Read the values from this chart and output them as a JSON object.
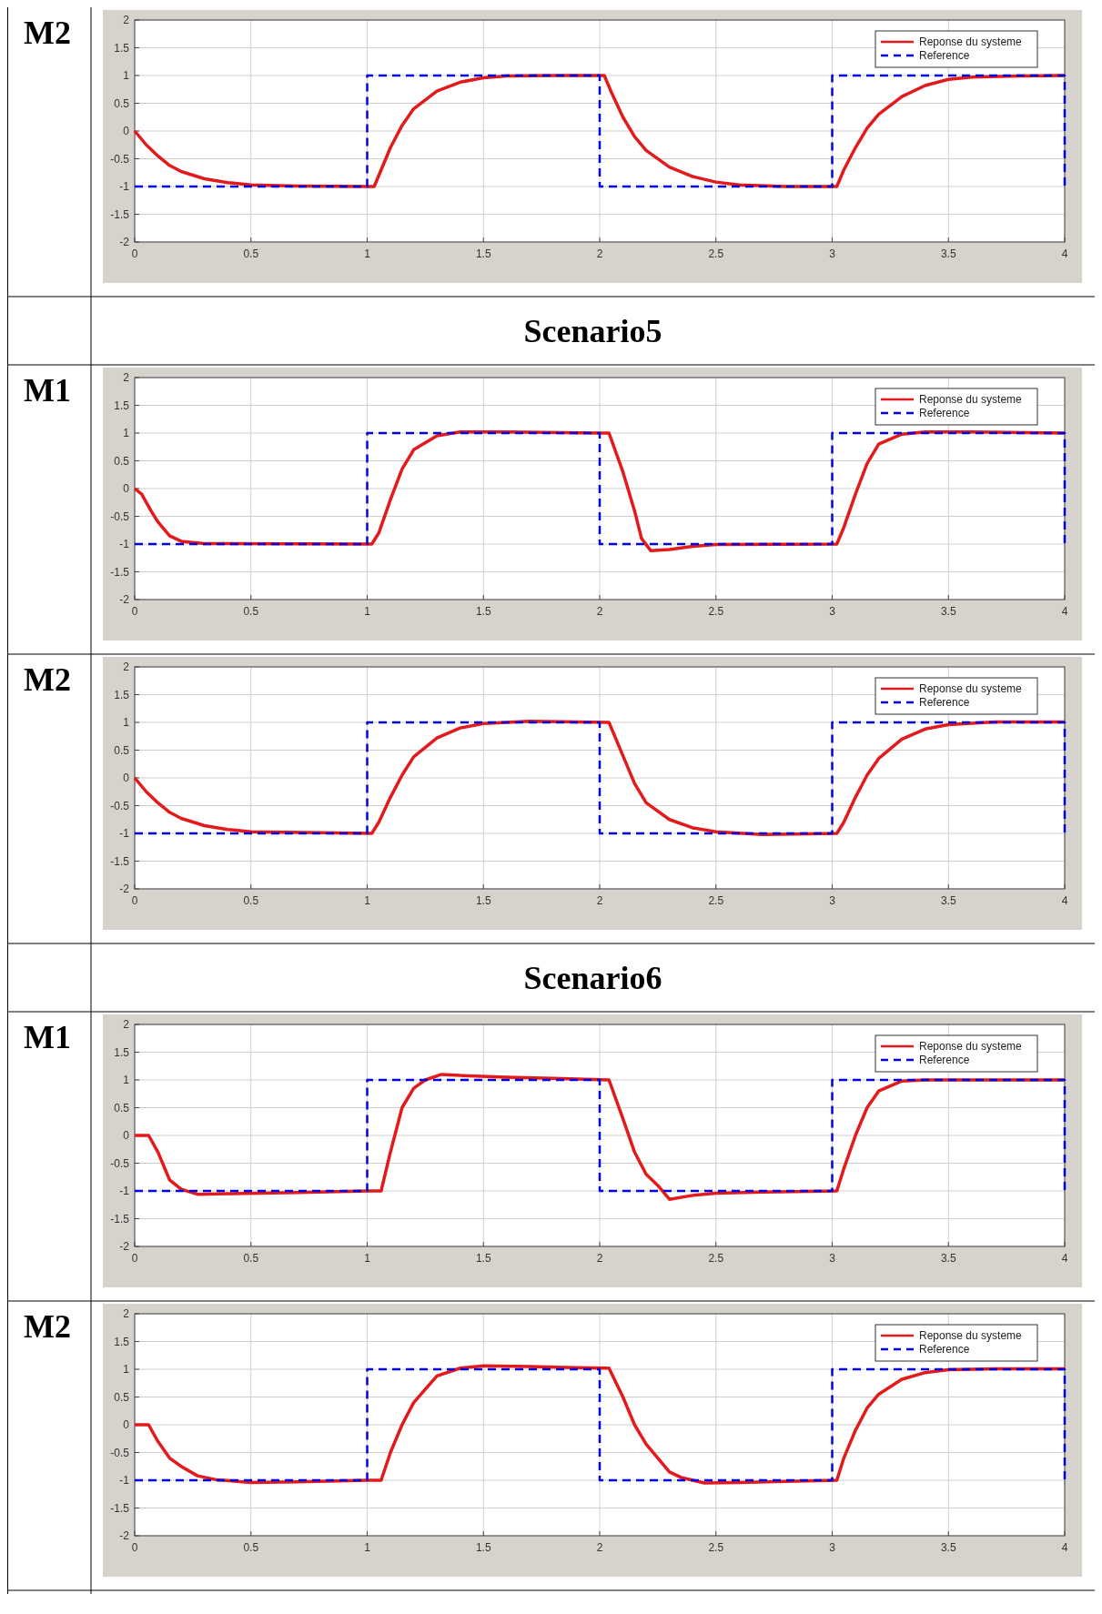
{
  "chart_data": [
    {
      "type": "line",
      "title": "M2",
      "xlim": [
        0,
        4
      ],
      "ylim": [
        -2,
        2
      ],
      "xticks": [
        0,
        0.5,
        1,
        1.5,
        2,
        2.5,
        3,
        3.5,
        4
      ],
      "yticks": [
        -2,
        -1.5,
        -1,
        -0.5,
        0,
        0.5,
        1,
        1.5,
        2
      ],
      "grid": true,
      "legend": "top right",
      "series": [
        {
          "name": "Reponse du systeme",
          "color": "#e31a1c",
          "line_style": "solid",
          "x": [
            0,
            0.05,
            0.1,
            0.15,
            0.2,
            0.3,
            0.4,
            0.5,
            0.7,
            1.0,
            1.03,
            1.06,
            1.1,
            1.15,
            1.2,
            1.3,
            1.4,
            1.5,
            1.6,
            1.8,
            2.0,
            2.02,
            2.05,
            2.1,
            2.15,
            2.2,
            2.3,
            2.4,
            2.5,
            2.6,
            2.8,
            3.02,
            3.05,
            3.1,
            3.15,
            3.2,
            3.3,
            3.4,
            3.5,
            3.6,
            3.8,
            4.0
          ],
          "values": [
            0,
            -0.25,
            -0.45,
            -0.62,
            -0.73,
            -0.86,
            -0.93,
            -0.97,
            -0.99,
            -1,
            -1,
            -0.7,
            -0.3,
            0.1,
            0.4,
            0.72,
            0.88,
            0.96,
            0.99,
            1,
            1,
            1,
            0.7,
            0.25,
            -0.1,
            -0.35,
            -0.65,
            -0.82,
            -0.92,
            -0.97,
            -1,
            -1,
            -0.7,
            -0.3,
            0.05,
            0.3,
            0.62,
            0.82,
            0.93,
            0.97,
            0.99,
            1
          ]
        },
        {
          "name": "Reference",
          "color": "#0000e0",
          "line_style": "dashed",
          "x": [
            0,
            1,
            1,
            2,
            2,
            3,
            3,
            4,
            4
          ],
          "values": [
            -1,
            -1,
            1,
            1,
            -1,
            -1,
            1,
            1,
            -1
          ]
        }
      ]
    },
    {
      "type": "line",
      "title": "M1",
      "subtitle": "Scenario5",
      "xlim": [
        0,
        4
      ],
      "ylim": [
        -2,
        2
      ],
      "xticks": [
        0,
        0.5,
        1,
        1.5,
        2,
        2.5,
        3,
        3.5,
        4
      ],
      "yticks": [
        -2,
        -1.5,
        -1,
        -0.5,
        0,
        0.5,
        1,
        1.5,
        2
      ],
      "grid": true,
      "legend": "top right",
      "series": [
        {
          "name": "Reponse du systeme",
          "color": "#e31a1c",
          "line_style": "solid",
          "x": [
            0,
            0.03,
            0.07,
            0.1,
            0.15,
            0.2,
            0.3,
            1.02,
            1.05,
            1.1,
            1.15,
            1.2,
            1.3,
            1.4,
            1.6,
            2.0,
            2.04,
            2.1,
            2.15,
            2.18,
            2.22,
            2.3,
            2.4,
            2.5,
            3.02,
            3.05,
            3.1,
            3.15,
            3.2,
            3.3,
            3.4,
            3.6,
            4.0
          ],
          "values": [
            0,
            -0.1,
            -0.4,
            -0.6,
            -0.85,
            -0.95,
            -0.99,
            -1,
            -0.8,
            -0.2,
            0.35,
            0.7,
            0.95,
            1.02,
            1.02,
            1,
            1,
            0.3,
            -0.4,
            -0.9,
            -1.12,
            -1.1,
            -1.04,
            -1.01,
            -1,
            -0.7,
            -0.1,
            0.45,
            0.8,
            0.98,
            1.02,
            1.02,
            1
          ]
        },
        {
          "name": "Reference",
          "color": "#0000e0",
          "line_style": "dashed",
          "x": [
            0,
            1,
            1,
            2,
            2,
            3,
            3,
            4,
            4
          ],
          "values": [
            -1,
            -1,
            1,
            1,
            -1,
            -1,
            1,
            1,
            -1
          ]
        }
      ]
    },
    {
      "type": "line",
      "title": "M2",
      "xlim": [
        0,
        4
      ],
      "ylim": [
        -2,
        2
      ],
      "xticks": [
        0,
        0.5,
        1,
        1.5,
        2,
        2.5,
        3,
        3.5,
        4
      ],
      "yticks": [
        -2,
        -1.5,
        -1,
        -0.5,
        0,
        0.5,
        1,
        1.5,
        2
      ],
      "grid": true,
      "legend": "top right",
      "series": [
        {
          "name": "Reponse du systeme",
          "color": "#e31a1c",
          "line_style": "solid",
          "x": [
            0,
            0.05,
            0.1,
            0.15,
            0.2,
            0.3,
            0.4,
            0.5,
            1.02,
            1.05,
            1.1,
            1.15,
            1.2,
            1.3,
            1.4,
            1.5,
            1.7,
            2.04,
            2.1,
            2.15,
            2.2,
            2.3,
            2.4,
            2.5,
            2.7,
            2.9,
            3.02,
            3.05,
            3.1,
            3.15,
            3.2,
            3.3,
            3.4,
            3.5,
            3.7,
            4.0
          ],
          "values": [
            0,
            -0.25,
            -0.45,
            -0.62,
            -0.73,
            -0.86,
            -0.93,
            -0.97,
            -1,
            -0.8,
            -0.35,
            0.05,
            0.38,
            0.72,
            0.9,
            0.98,
            1.02,
            1,
            0.4,
            -0.1,
            -0.45,
            -0.75,
            -0.9,
            -0.97,
            -1.02,
            -1.01,
            -1,
            -0.8,
            -0.35,
            0.05,
            0.35,
            0.7,
            0.88,
            0.96,
            1.01,
            1.01
          ]
        },
        {
          "name": "Reference",
          "color": "#0000e0",
          "line_style": "dashed",
          "x": [
            0,
            1,
            1,
            2,
            2,
            3,
            3,
            4,
            4
          ],
          "values": [
            -1,
            -1,
            1,
            1,
            -1,
            -1,
            1,
            1,
            -1
          ]
        }
      ]
    },
    {
      "type": "line",
      "title": "M1",
      "subtitle": "Scenario6",
      "xlim": [
        0,
        4
      ],
      "ylim": [
        -2,
        2
      ],
      "xticks": [
        0,
        0.5,
        1,
        1.5,
        2,
        2.5,
        3,
        3.5,
        4
      ],
      "yticks": [
        -2,
        -1.5,
        -1,
        -0.5,
        0,
        0.5,
        1,
        1.5,
        2
      ],
      "grid": true,
      "legend": "top right",
      "series": [
        {
          "name": "Reponse du systeme",
          "color": "#e31a1c",
          "line_style": "solid",
          "x": [
            0,
            0.06,
            0.1,
            0.15,
            0.2,
            0.27,
            0.4,
            0.7,
            1.0,
            1.06,
            1.1,
            1.15,
            1.2,
            1.25,
            1.32,
            1.4,
            1.6,
            1.8,
            2.04,
            2.1,
            2.15,
            2.2,
            2.25,
            2.3,
            2.4,
            2.5,
            2.7,
            3.02,
            3.05,
            3.1,
            3.15,
            3.2,
            3.3,
            3.4,
            4.0
          ],
          "values": [
            0,
            0,
            -0.3,
            -0.8,
            -0.97,
            -1.06,
            -1.05,
            -1.03,
            -1,
            -1,
            -0.3,
            0.5,
            0.85,
            1,
            1.1,
            1.08,
            1.05,
            1.03,
            1,
            0.3,
            -0.3,
            -0.7,
            -0.9,
            -1.15,
            -1.08,
            -1.04,
            -1.02,
            -1,
            -0.6,
            0,
            0.5,
            0.8,
            0.98,
            1,
            1
          ]
        },
        {
          "name": "Reference",
          "color": "#0000e0",
          "line_style": "dashed",
          "x": [
            0,
            1,
            1,
            2,
            2,
            3,
            3,
            4,
            4
          ],
          "values": [
            -1,
            -1,
            1,
            1,
            -1,
            -1,
            1,
            1,
            -1
          ]
        }
      ]
    },
    {
      "type": "line",
      "title": "M2",
      "xlim": [
        0,
        4
      ],
      "ylim": [
        -2,
        2
      ],
      "xticks": [
        0,
        0.5,
        1,
        1.5,
        2,
        2.5,
        3,
        3.5,
        4
      ],
      "yticks": [
        -2,
        -1.5,
        -1,
        -0.5,
        0,
        0.5,
        1,
        1.5,
        2
      ],
      "grid": true,
      "legend": "top right",
      "series": [
        {
          "name": "Reponse du systeme",
          "color": "#e31a1c",
          "line_style": "solid",
          "x": [
            0,
            0.06,
            0.1,
            0.15,
            0.2,
            0.27,
            0.35,
            0.5,
            0.7,
            1.0,
            1.06,
            1.1,
            1.15,
            1.2,
            1.3,
            1.4,
            1.5,
            1.7,
            1.9,
            2.04,
            2.1,
            2.15,
            2.2,
            2.3,
            2.35,
            2.45,
            2.6,
            2.8,
            3.02,
            3.05,
            3.1,
            3.15,
            3.2,
            3.3,
            3.4,
            3.5,
            3.7,
            4.0
          ],
          "values": [
            0,
            0,
            -0.3,
            -0.6,
            -0.75,
            -0.92,
            -0.99,
            -1.04,
            -1.03,
            -1,
            -1,
            -0.5,
            0,
            0.4,
            0.88,
            1.02,
            1.06,
            1.05,
            1.03,
            1.02,
            0.5,
            0,
            -0.35,
            -0.85,
            -0.95,
            -1.05,
            -1.04,
            -1.02,
            -1,
            -0.6,
            -0.1,
            0.3,
            0.55,
            0.82,
            0.94,
            0.99,
            1.01,
            1.01
          ]
        },
        {
          "name": "Reference",
          "color": "#0000e0",
          "line_style": "dashed",
          "x": [
            0,
            1,
            1,
            2,
            2,
            3,
            3,
            4,
            4
          ],
          "values": [
            -1,
            -1,
            1,
            1,
            -1,
            -1,
            1,
            1,
            -1
          ]
        }
      ]
    }
  ]
}
